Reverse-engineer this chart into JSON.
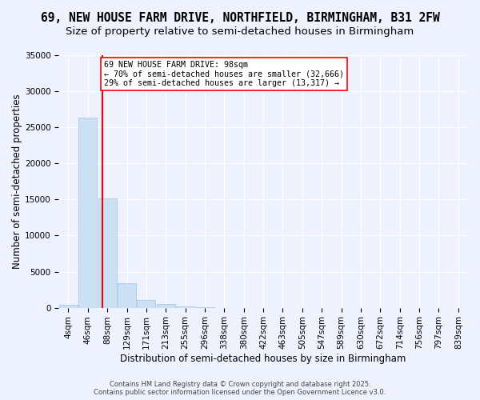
{
  "title1": "69, NEW HOUSE FARM DRIVE, NORTHFIELD, BIRMINGHAM, B31 2FW",
  "title2": "Size of property relative to semi-detached houses in Birmingham",
  "xlabel": "Distribution of semi-detached houses by size in Birmingham",
  "ylabel": "Number of semi-detached properties",
  "footer1": "Contains HM Land Registry data © Crown copyright and database right 2025.",
  "footer2": "Contains public sector information licensed under the Open Government Licence v3.0.",
  "bins": [
    "4sqm",
    "46sqm",
    "88sqm",
    "129sqm",
    "171sqm",
    "213sqm",
    "255sqm",
    "296sqm",
    "338sqm",
    "380sqm",
    "422sqm",
    "463sqm",
    "505sqm",
    "547sqm",
    "589sqm",
    "630sqm",
    "672sqm",
    "714sqm",
    "756sqm",
    "797sqm",
    "839sqm"
  ],
  "bar_values": [
    400,
    26300,
    15200,
    3350,
    1050,
    480,
    230,
    50,
    0,
    0,
    0,
    0,
    0,
    0,
    0,
    0,
    0,
    0,
    0,
    0,
    0
  ],
  "bar_color": "#cce0f5",
  "bar_edge_color": "#a0c4e8",
  "property_size": 98,
  "property_size_label": "69 NEW HOUSE FARM DRIVE: 98sqm",
  "pct_smaller": 70,
  "count_smaller": 32666,
  "pct_larger": 29,
  "count_larger": 13317,
  "vline_color": "red",
  "annotation_box_edge_color": "red",
  "ylim": [
    0,
    35000
  ],
  "yticks": [
    0,
    5000,
    10000,
    15000,
    20000,
    25000,
    30000,
    35000
  ],
  "bg_color": "#eef2ff",
  "grid_color": "white",
  "title_fontsize": 10.5,
  "subtitle_fontsize": 9.5,
  "axis_label_fontsize": 8.5,
  "tick_fontsize": 7.5,
  "bin_start_vals": [
    4,
    46,
    88,
    129,
    171,
    213,
    255,
    296,
    338,
    380,
    422,
    463,
    505,
    547,
    589,
    630,
    672,
    714,
    756,
    797,
    839
  ]
}
